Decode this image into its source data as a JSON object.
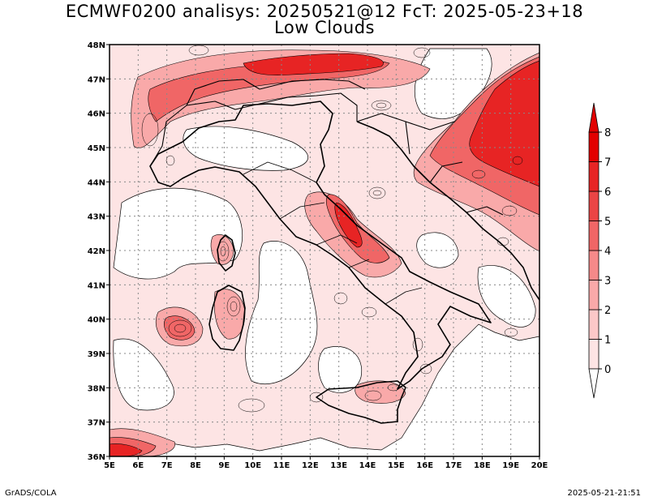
{
  "title": {
    "line1": "ECMWF0200 analisys: 20250521@12 FcT: 2025-05-23+18",
    "line2": "Low Clouds"
  },
  "map": {
    "lon_range": [
      5,
      20
    ],
    "lat_range": [
      36,
      48
    ],
    "lon_ticks": [
      "5E",
      "6E",
      "7E",
      "8E",
      "9E",
      "10E",
      "11E",
      "12E",
      "13E",
      "14E",
      "15E",
      "16E",
      "17E",
      "18E",
      "19E",
      "20E"
    ],
    "lat_ticks": [
      "36N",
      "37N",
      "38N",
      "39N",
      "40N",
      "41N",
      "42N",
      "43N",
      "44N",
      "45N",
      "46N",
      "47N",
      "48N"
    ],
    "grid": "dotted",
    "field_name": "Low Clouds"
  },
  "colorbar": {
    "levels": [
      "0",
      "1",
      "2",
      "3",
      "4",
      "5",
      "6",
      "7",
      "8"
    ],
    "colors": [
      "#fde4e4",
      "#fcc8c8",
      "#f9a9a9",
      "#f58989",
      "#f06666",
      "#eb4545",
      "#e72424",
      "#e20000"
    ],
    "extend": "both"
  },
  "footer": {
    "left": "GrADS/COLA",
    "right": "2025-05-21-21:51"
  }
}
